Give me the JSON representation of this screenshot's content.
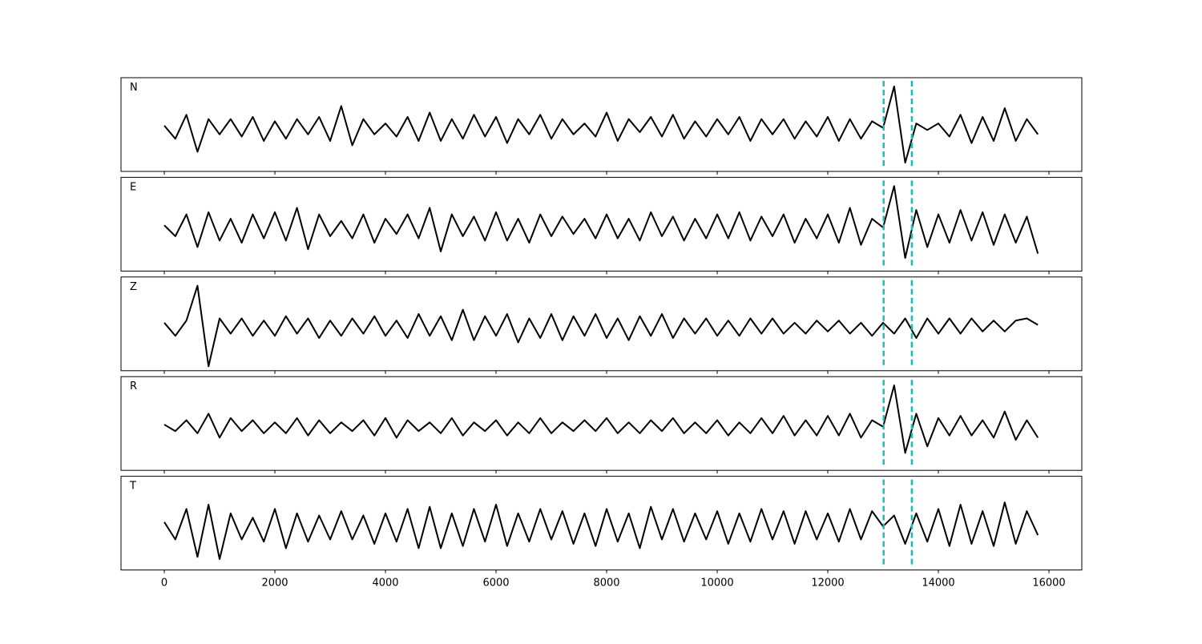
{
  "chart_data": {
    "type": "line",
    "x": [
      0,
      200,
      400,
      600,
      800,
      1000,
      1200,
      1400,
      1600,
      1800,
      2000,
      2200,
      2400,
      2600,
      2800,
      3000,
      3200,
      3400,
      3600,
      3800,
      4000,
      4200,
      4400,
      4600,
      4800,
      5000,
      5200,
      5400,
      5600,
      5800,
      6000,
      6200,
      6400,
      6600,
      6800,
      7000,
      7200,
      7400,
      7600,
      7800,
      8000,
      8200,
      8400,
      8600,
      8800,
      9000,
      9200,
      9400,
      9600,
      9800,
      10000,
      10200,
      10400,
      10600,
      10800,
      11000,
      11200,
      11400,
      11600,
      11800,
      12000,
      12200,
      12400,
      12600,
      12800,
      13000,
      13200,
      13400,
      13600,
      13800,
      14000,
      14200,
      14400,
      14600,
      14800,
      15000,
      15200,
      15400,
      15600,
      15800
    ],
    "xlim": [
      -783,
      16594
    ],
    "xticks": [
      0,
      2000,
      4000,
      6000,
      8000,
      10000,
      12000,
      14000,
      16000
    ],
    "ylim": [
      -1,
      1.15
    ],
    "vlines": [
      13010,
      13520
    ],
    "vline_color": "#17c0b5",
    "series": [
      {
        "name": "N",
        "color": "#000000",
        "values": [
          0.05,
          -0.25,
          0.3,
          -0.55,
          0.2,
          -0.15,
          0.2,
          -0.2,
          0.25,
          -0.3,
          0.15,
          -0.25,
          0.2,
          -0.15,
          0.25,
          -0.3,
          0.5,
          -0.4,
          0.2,
          -0.15,
          0.1,
          -0.2,
          0.25,
          -0.3,
          0.35,
          -0.3,
          0.2,
          -0.25,
          0.3,
          -0.2,
          0.25,
          -0.35,
          0.2,
          -0.15,
          0.3,
          -0.25,
          0.2,
          -0.15,
          0.1,
          -0.2,
          0.35,
          -0.3,
          0.2,
          -0.1,
          0.25,
          -0.2,
          0.3,
          -0.25,
          0.15,
          -0.2,
          0.2,
          -0.15,
          0.25,
          -0.3,
          0.2,
          -0.15,
          0.2,
          -0.25,
          0.15,
          -0.2,
          0.25,
          -0.3,
          0.2,
          -0.25,
          0.15,
          0.0,
          0.95,
          -0.8,
          0.1,
          -0.05,
          0.1,
          -0.2,
          0.3,
          -0.35,
          0.25,
          -0.3,
          0.45,
          -0.3,
          0.2,
          -0.15
        ]
      },
      {
        "name": "E",
        "color": "#000000",
        "values": [
          0.05,
          -0.2,
          0.3,
          -0.45,
          0.35,
          -0.3,
          0.2,
          -0.35,
          0.3,
          -0.25,
          0.35,
          -0.3,
          0.45,
          -0.5,
          0.3,
          -0.2,
          0.15,
          -0.25,
          0.3,
          -0.35,
          0.2,
          -0.15,
          0.3,
          -0.25,
          0.45,
          -0.55,
          0.3,
          -0.2,
          0.25,
          -0.3,
          0.35,
          -0.3,
          0.2,
          -0.35,
          0.3,
          -0.2,
          0.25,
          -0.15,
          0.2,
          -0.25,
          0.3,
          -0.25,
          0.2,
          -0.3,
          0.35,
          -0.2,
          0.25,
          -0.3,
          0.2,
          -0.25,
          0.3,
          -0.25,
          0.35,
          -0.3,
          0.25,
          -0.2,
          0.3,
          -0.35,
          0.2,
          -0.25,
          0.3,
          -0.35,
          0.45,
          -0.4,
          0.2,
          0.0,
          0.95,
          -0.7,
          0.4,
          -0.45,
          0.3,
          -0.35,
          0.4,
          -0.3,
          0.35,
          -0.4,
          0.3,
          -0.35,
          0.25,
          -0.6
        ]
      },
      {
        "name": "Z",
        "color": "#000000",
        "values": [
          0.1,
          -0.2,
          0.15,
          0.95,
          -0.9,
          0.2,
          -0.15,
          0.2,
          -0.2,
          0.15,
          -0.2,
          0.25,
          -0.15,
          0.2,
          -0.25,
          0.15,
          -0.2,
          0.2,
          -0.15,
          0.25,
          -0.2,
          0.15,
          -0.25,
          0.3,
          -0.2,
          0.25,
          -0.3,
          0.4,
          -0.3,
          0.25,
          -0.2,
          0.3,
          -0.35,
          0.2,
          -0.25,
          0.3,
          -0.3,
          0.25,
          -0.2,
          0.3,
          -0.25,
          0.2,
          -0.3,
          0.25,
          -0.2,
          0.3,
          -0.25,
          0.2,
          -0.15,
          0.2,
          -0.2,
          0.15,
          -0.2,
          0.2,
          -0.15,
          0.2,
          -0.15,
          0.1,
          -0.15,
          0.15,
          -0.1,
          0.15,
          -0.15,
          0.1,
          -0.2,
          0.1,
          -0.15,
          0.2,
          -0.25,
          0.2,
          -0.15,
          0.2,
          -0.15,
          0.2,
          -0.1,
          0.15,
          -0.1,
          0.15,
          0.2,
          0.05
        ]
      },
      {
        "name": "R",
        "color": "#000000",
        "values": [
          0.05,
          -0.1,
          0.15,
          -0.15,
          0.3,
          -0.25,
          0.2,
          -0.1,
          0.15,
          -0.15,
          0.1,
          -0.15,
          0.2,
          -0.2,
          0.15,
          -0.15,
          0.1,
          -0.1,
          0.15,
          -0.2,
          0.2,
          -0.25,
          0.15,
          -0.1,
          0.1,
          -0.15,
          0.2,
          -0.2,
          0.1,
          -0.1,
          0.15,
          -0.2,
          0.1,
          -0.15,
          0.2,
          -0.15,
          0.1,
          -0.1,
          0.15,
          -0.1,
          0.2,
          -0.15,
          0.1,
          -0.15,
          0.15,
          -0.1,
          0.2,
          -0.15,
          0.1,
          -0.15,
          0.15,
          -0.2,
          0.1,
          -0.15,
          0.2,
          -0.15,
          0.25,
          -0.2,
          0.15,
          -0.2,
          0.25,
          -0.2,
          0.3,
          -0.25,
          0.15,
          0.0,
          0.95,
          -0.6,
          0.3,
          -0.45,
          0.2,
          -0.2,
          0.25,
          -0.2,
          0.15,
          -0.25,
          0.35,
          -0.3,
          0.15,
          -0.25
        ]
      },
      {
        "name": "T",
        "color": "#000000",
        "values": [
          0.1,
          -0.3,
          0.4,
          -0.7,
          0.5,
          -0.75,
          0.3,
          -0.3,
          0.2,
          -0.35,
          0.4,
          -0.5,
          0.3,
          -0.35,
          0.25,
          -0.3,
          0.35,
          -0.3,
          0.25,
          -0.4,
          0.3,
          -0.35,
          0.4,
          -0.5,
          0.45,
          -0.5,
          0.3,
          -0.45,
          0.4,
          -0.35,
          0.5,
          -0.45,
          0.3,
          -0.35,
          0.4,
          -0.3,
          0.35,
          -0.4,
          0.3,
          -0.45,
          0.4,
          -0.35,
          0.3,
          -0.5,
          0.45,
          -0.3,
          0.4,
          -0.35,
          0.3,
          -0.3,
          0.35,
          -0.4,
          0.3,
          -0.35,
          0.4,
          -0.3,
          0.35,
          -0.4,
          0.35,
          -0.3,
          0.3,
          -0.35,
          0.4,
          -0.3,
          0.35,
          0.0,
          0.25,
          -0.4,
          0.3,
          -0.35,
          0.4,
          -0.45,
          0.5,
          -0.4,
          0.35,
          -0.45,
          0.55,
          -0.4,
          0.35,
          -0.2
        ]
      }
    ]
  }
}
